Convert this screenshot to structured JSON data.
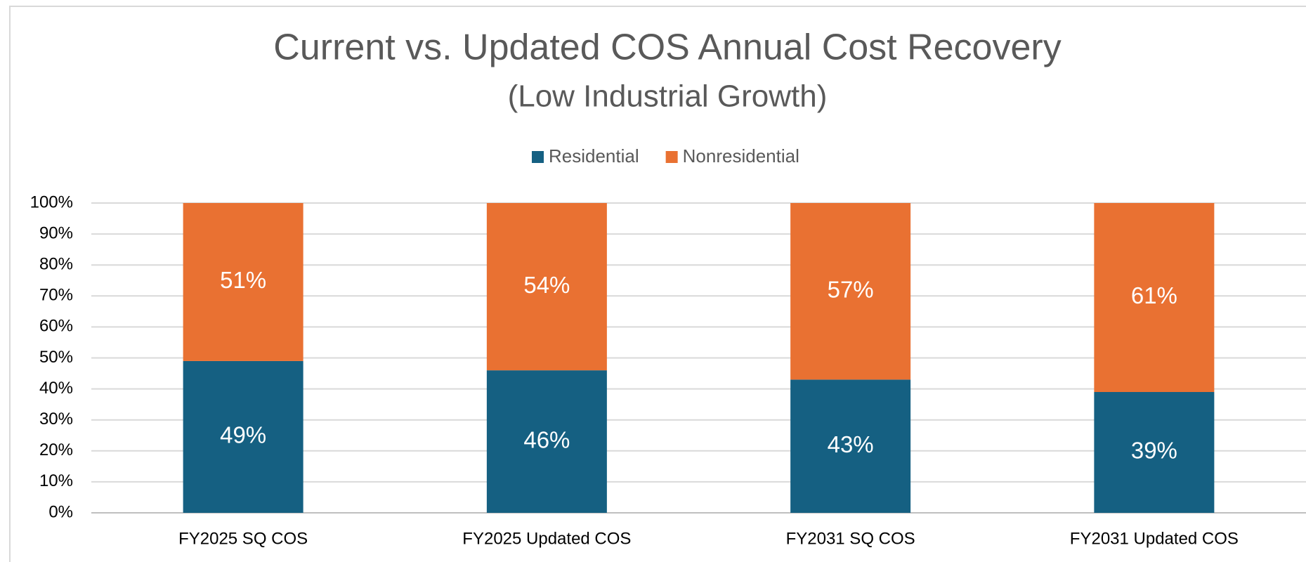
{
  "chart_data": {
    "type": "stacked_bar",
    "title": "Current vs. Updated COS Annual Cost Recovery",
    "subtitle": "(Low Industrial Growth)",
    "categories": [
      "FY2025 SQ COS",
      "FY2025 Updated COS",
      "FY2031 SQ COS",
      "FY2031 Updated COS"
    ],
    "series": [
      {
        "name": "Residential",
        "color": "#156082",
        "values": [
          49,
          46,
          43,
          39
        ],
        "value_labels": [
          "49%",
          "46%",
          "43%",
          "39%"
        ]
      },
      {
        "name": "Nonresidential",
        "color": "#E97132",
        "values": [
          51,
          54,
          57,
          61
        ],
        "value_labels": [
          "51%",
          "54%",
          "57%",
          "61%"
        ]
      }
    ],
    "ylim": [
      0,
      100
    ],
    "yticks": [
      {
        "value": 0,
        "label": "0%"
      },
      {
        "value": 10,
        "label": "10%"
      },
      {
        "value": 20,
        "label": "20%"
      },
      {
        "value": 30,
        "label": "30%"
      },
      {
        "value": 40,
        "label": "40%"
      },
      {
        "value": 50,
        "label": "50%"
      },
      {
        "value": 60,
        "label": "60%"
      },
      {
        "value": 70,
        "label": "70%"
      },
      {
        "value": 80,
        "label": "80%"
      },
      {
        "value": 90,
        "label": "90%"
      },
      {
        "value": 100,
        "label": "100%"
      }
    ],
    "grid": true,
    "legend": "top"
  }
}
